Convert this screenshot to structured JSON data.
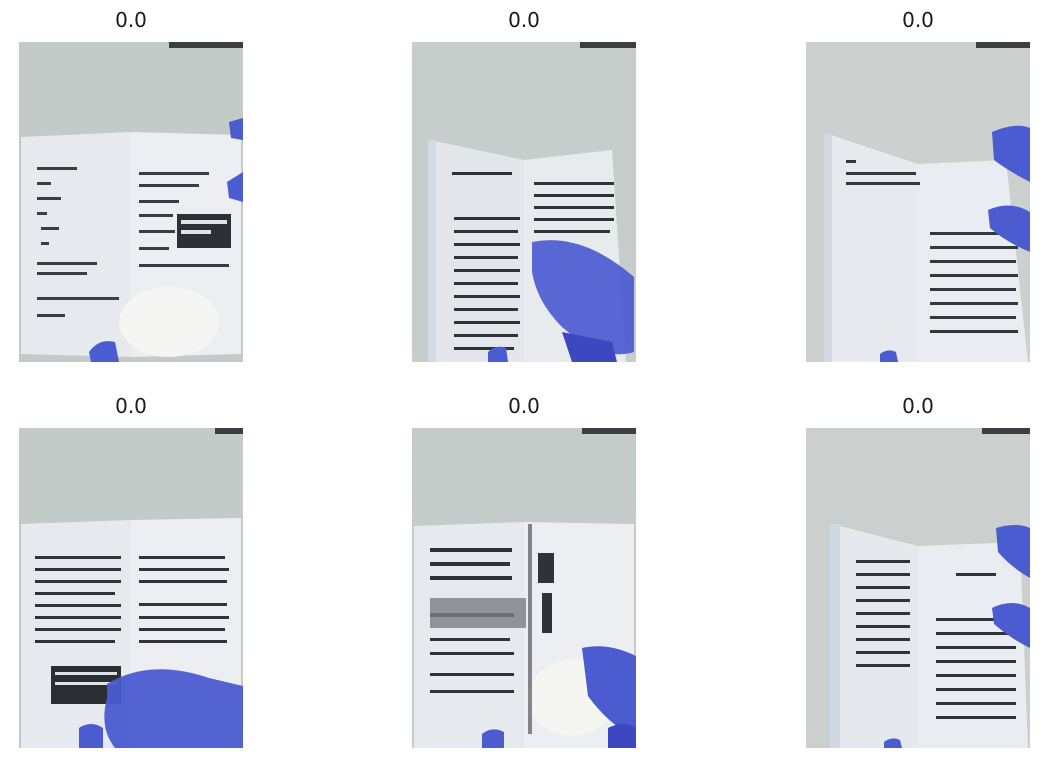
{
  "grid": {
    "tiles": [
      {
        "label": "0.0"
      },
      {
        "label": "0.0"
      },
      {
        "label": "0.0"
      },
      {
        "label": "0.0"
      },
      {
        "label": "0.0"
      },
      {
        "label": "0.0"
      }
    ]
  },
  "colors": {
    "background_wall": "#c6ccca",
    "page_paper": "#e9ecef",
    "text_ink": "#2b2f33",
    "glove_blue": "#4b5bd0",
    "glove_dark": "#2f3aa8"
  }
}
